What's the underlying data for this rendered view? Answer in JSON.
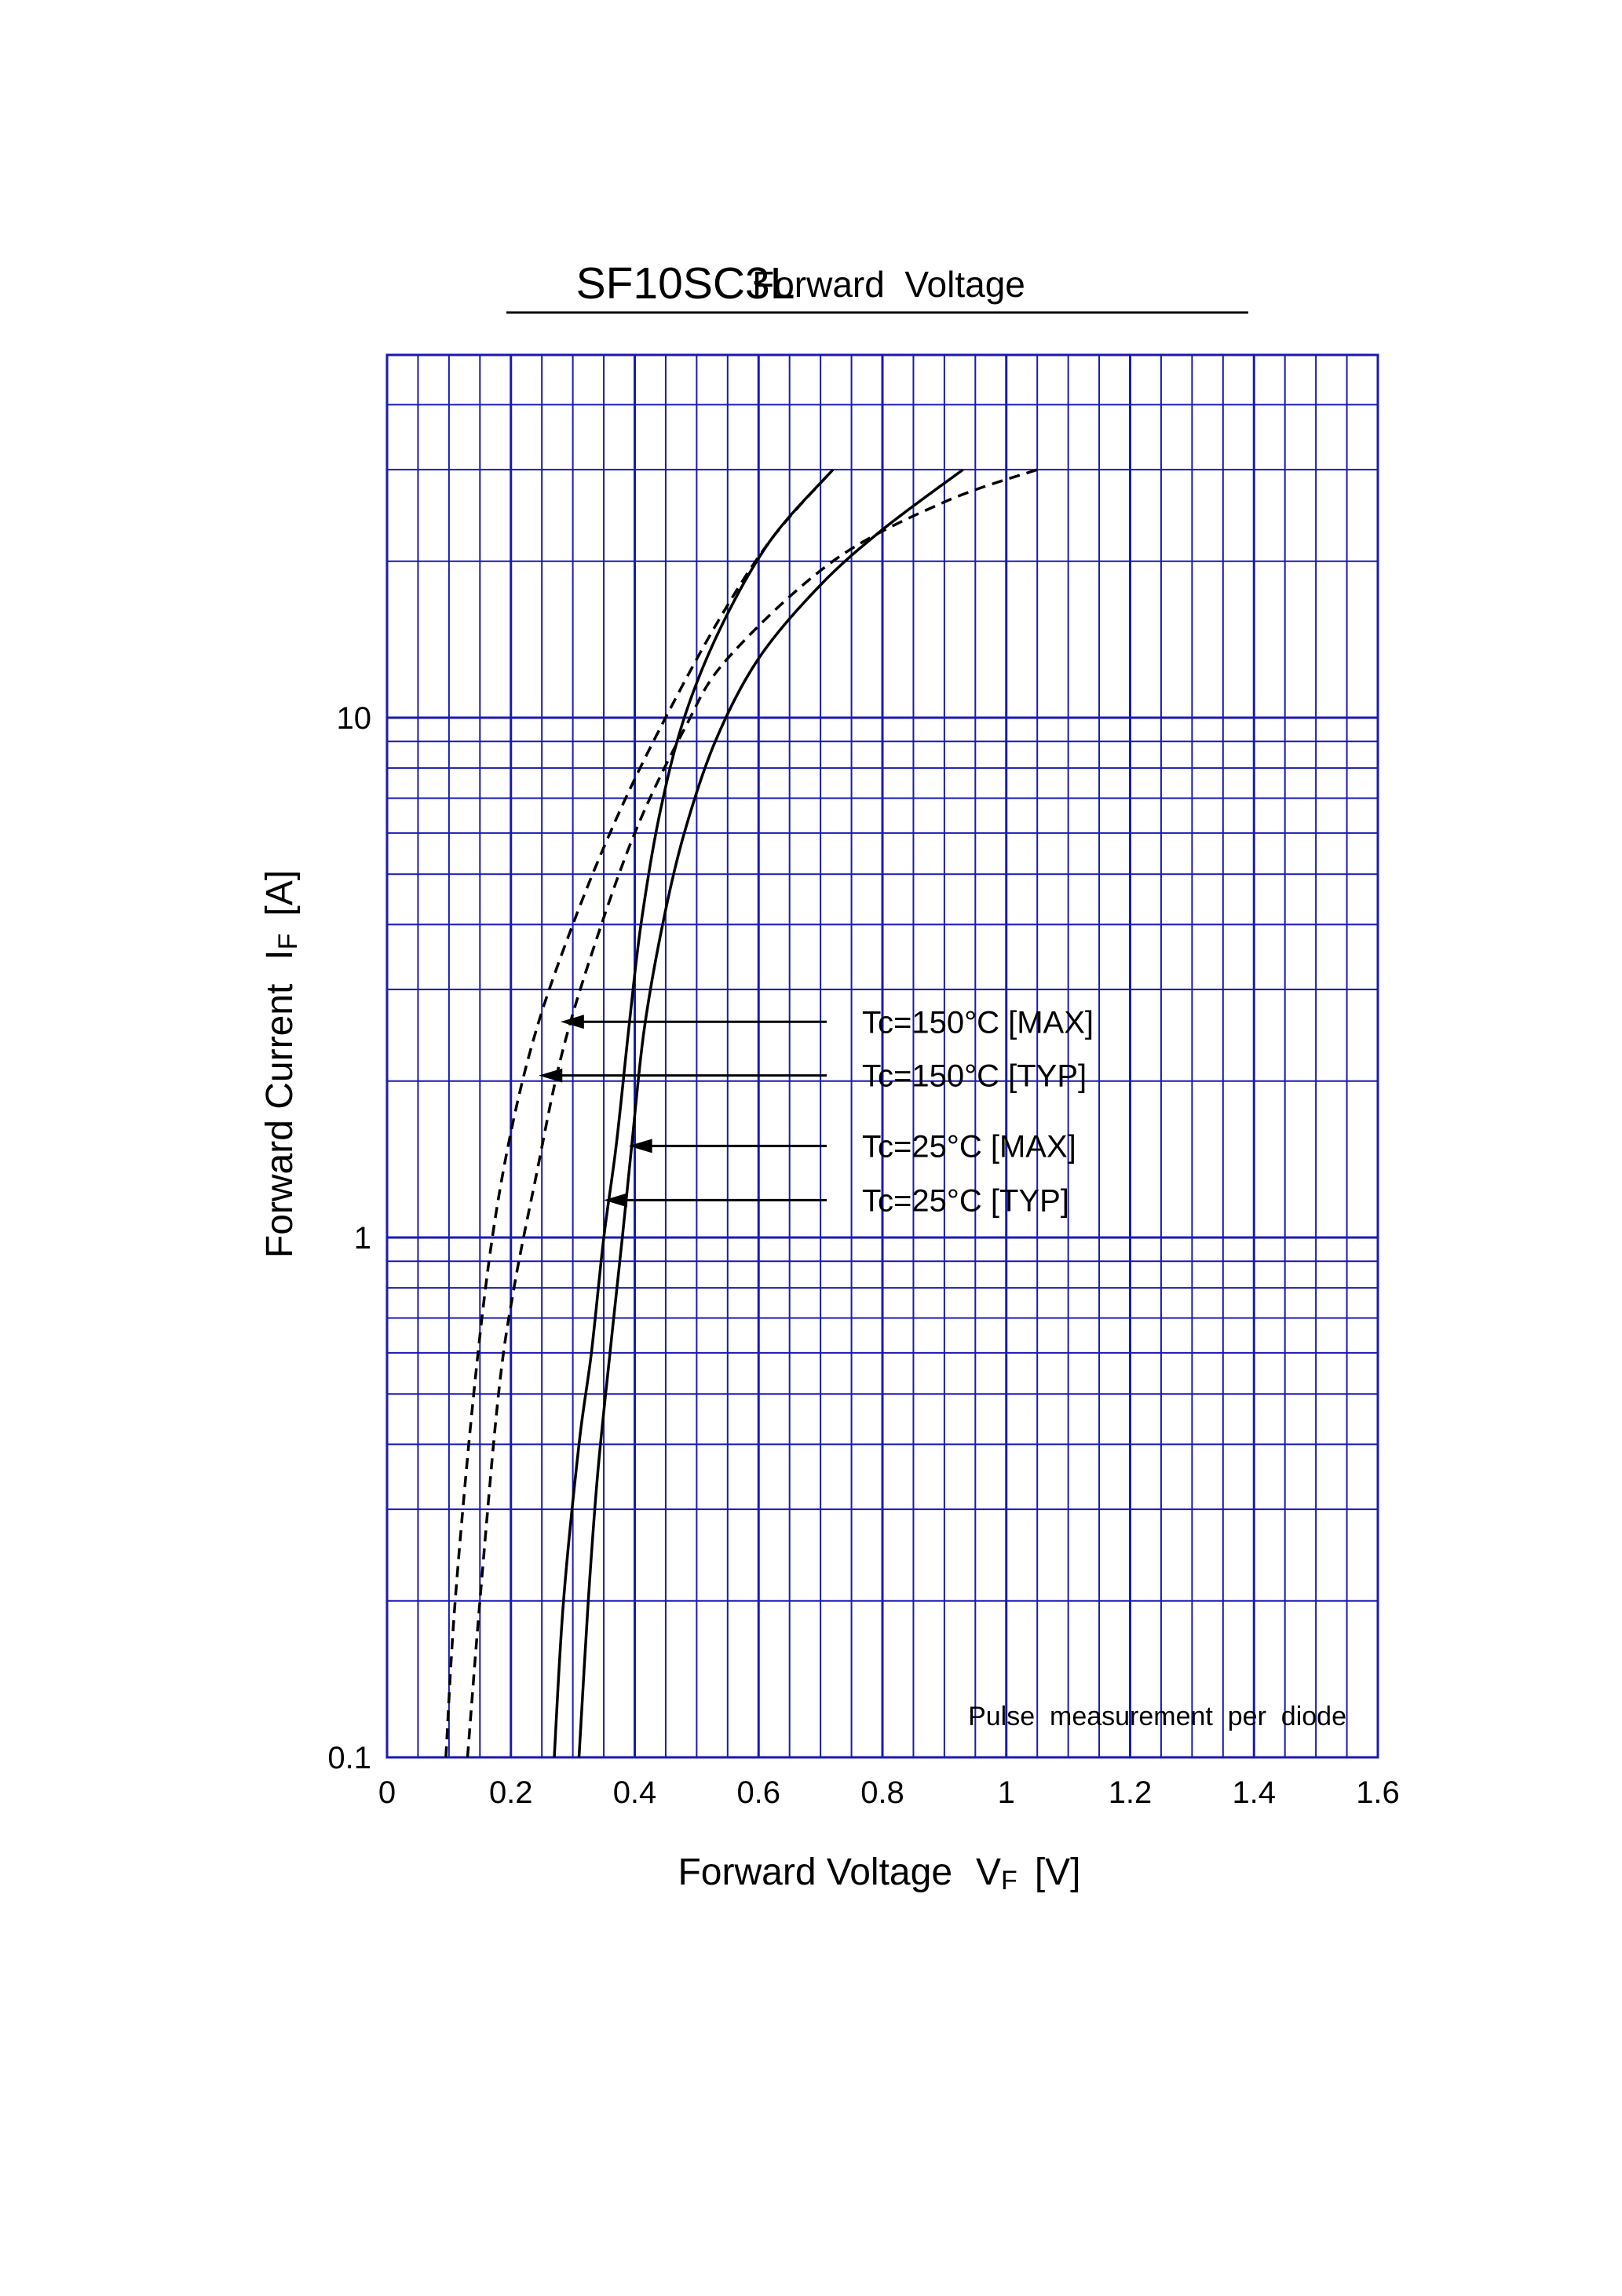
{
  "chart_data": {
    "type": "line",
    "title": "SF10SC3L",
    "subtitle": "Forward  Voltage",
    "xlabel": "Forward Voltage",
    "xlabel_symbol": "V",
    "xlabel_subscript": "F",
    "xlabel_unit": "[V]",
    "ylabel": "Forward Current",
    "ylabel_symbol": "I",
    "ylabel_subscript": "F",
    "ylabel_unit": "[A]",
    "xlim": [
      0,
      1.6
    ],
    "ylim": [
      0.1,
      40
    ],
    "y_scale": "log",
    "grid": true,
    "grid_color": "#1a1ab4",
    "x_ticks": [
      {
        "v": 0,
        "label": "0"
      },
      {
        "v": 0.2,
        "label": "0.2"
      },
      {
        "v": 0.4,
        "label": "0.4"
      },
      {
        "v": 0.6,
        "label": "0.6"
      },
      {
        "v": 0.8,
        "label": "0.8"
      },
      {
        "v": 1.0,
        "label": "1"
      },
      {
        "v": 1.2,
        "label": "1.2"
      },
      {
        "v": 1.4,
        "label": "1.4"
      },
      {
        "v": 1.6,
        "label": "1.6"
      }
    ],
    "y_ticks": [
      {
        "v": 0.1,
        "label": "0.1"
      },
      {
        "v": 1,
        "label": "1"
      },
      {
        "v": 10,
        "label": "10"
      }
    ],
    "note": "Pulse  measurement  per  diode",
    "series": [
      {
        "name": "Tc=150°C [MAX]",
        "style": "dashed",
        "points": [
          [
            0.095,
            0.1
          ],
          [
            0.11,
            0.2
          ],
          [
            0.14,
            0.5
          ],
          [
            0.17,
            1.0
          ],
          [
            0.205,
            1.7
          ],
          [
            0.245,
            2.6
          ],
          [
            0.3,
            4.0
          ],
          [
            0.36,
            6.0
          ],
          [
            0.43,
            9.0
          ],
          [
            0.53,
            15.0
          ],
          [
            0.62,
            22.0
          ],
          [
            0.72,
            30.0
          ]
        ]
      },
      {
        "name": "Tc=150°C [TYP]",
        "style": "dashed",
        "points": [
          [
            0.13,
            0.1
          ],
          [
            0.15,
            0.2
          ],
          [
            0.18,
            0.5
          ],
          [
            0.205,
            0.8
          ],
          [
            0.24,
            1.3
          ],
          [
            0.28,
            2.2
          ],
          [
            0.33,
            3.5
          ],
          [
            0.4,
            6.0
          ],
          [
            0.48,
            9.5
          ],
          [
            0.55,
            13.0
          ],
          [
            0.72,
            20.0
          ],
          [
            0.9,
            26.0
          ],
          [
            1.05,
            30.0
          ]
        ]
      },
      {
        "name": "Tc=25°C [MAX]",
        "style": "solid",
        "points": [
          [
            0.27,
            0.1
          ],
          [
            0.285,
            0.2
          ],
          [
            0.31,
            0.4
          ],
          [
            0.33,
            0.6
          ],
          [
            0.35,
            1.0
          ],
          [
            0.37,
            1.5
          ],
          [
            0.39,
            2.5
          ],
          [
            0.41,
            4.0
          ],
          [
            0.44,
            6.5
          ],
          [
            0.48,
            10.0
          ],
          [
            0.54,
            15.0
          ],
          [
            0.62,
            22.0
          ],
          [
            0.72,
            30.0
          ]
        ]
      },
      {
        "name": "Tc=25°C [TYP]",
        "style": "solid",
        "points": [
          [
            0.31,
            0.1
          ],
          [
            0.325,
            0.2
          ],
          [
            0.34,
            0.35
          ],
          [
            0.36,
            0.6
          ],
          [
            0.38,
            1.0
          ],
          [
            0.395,
            1.5
          ],
          [
            0.415,
            2.5
          ],
          [
            0.445,
            4.0
          ],
          [
            0.48,
            6.0
          ],
          [
            0.53,
            9.0
          ],
          [
            0.6,
            13.0
          ],
          [
            0.7,
            18.0
          ],
          [
            0.8,
            23.0
          ],
          [
            0.93,
            30.0
          ]
        ]
      }
    ],
    "annotations": [
      {
        "text": "Tc=150°C [MAX]",
        "tail": [
          0.71,
          2.6
        ],
        "head": [
          0.28,
          2.6
        ]
      },
      {
        "text": "Tc=150°C [TYP]",
        "tail": [
          0.71,
          2.05
        ],
        "head": [
          0.245,
          2.05
        ]
      },
      {
        "text": "Tc=25°C [MAX]",
        "tail": [
          0.71,
          1.5
        ],
        "head": [
          0.39,
          1.5
        ]
      },
      {
        "text": "Tc=25°C [TYP]",
        "tail": [
          0.71,
          1.18
        ],
        "head": [
          0.35,
          1.18
        ]
      }
    ]
  }
}
